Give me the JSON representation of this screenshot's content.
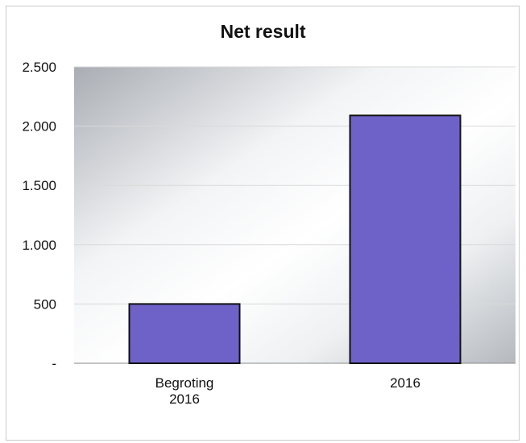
{
  "chart_data": {
    "type": "bar",
    "title": "Net result",
    "categories": [
      [
        "Begroting",
        "2016"
      ],
      [
        "2016"
      ]
    ],
    "values": [
      500,
      2090
    ],
    "ylim": [
      0,
      2500
    ],
    "yticks": [
      0,
      500,
      1000,
      1500,
      2000,
      2500
    ],
    "ytick_labels": [
      "-",
      "500",
      "1.000",
      "1.500",
      "2.000",
      "2.500"
    ],
    "grid": true,
    "xlabel": "",
    "ylabel": "",
    "colors": {
      "bar": "#6e62c8",
      "bar_border": "#111111",
      "grid": "#d9d9d9"
    }
  }
}
